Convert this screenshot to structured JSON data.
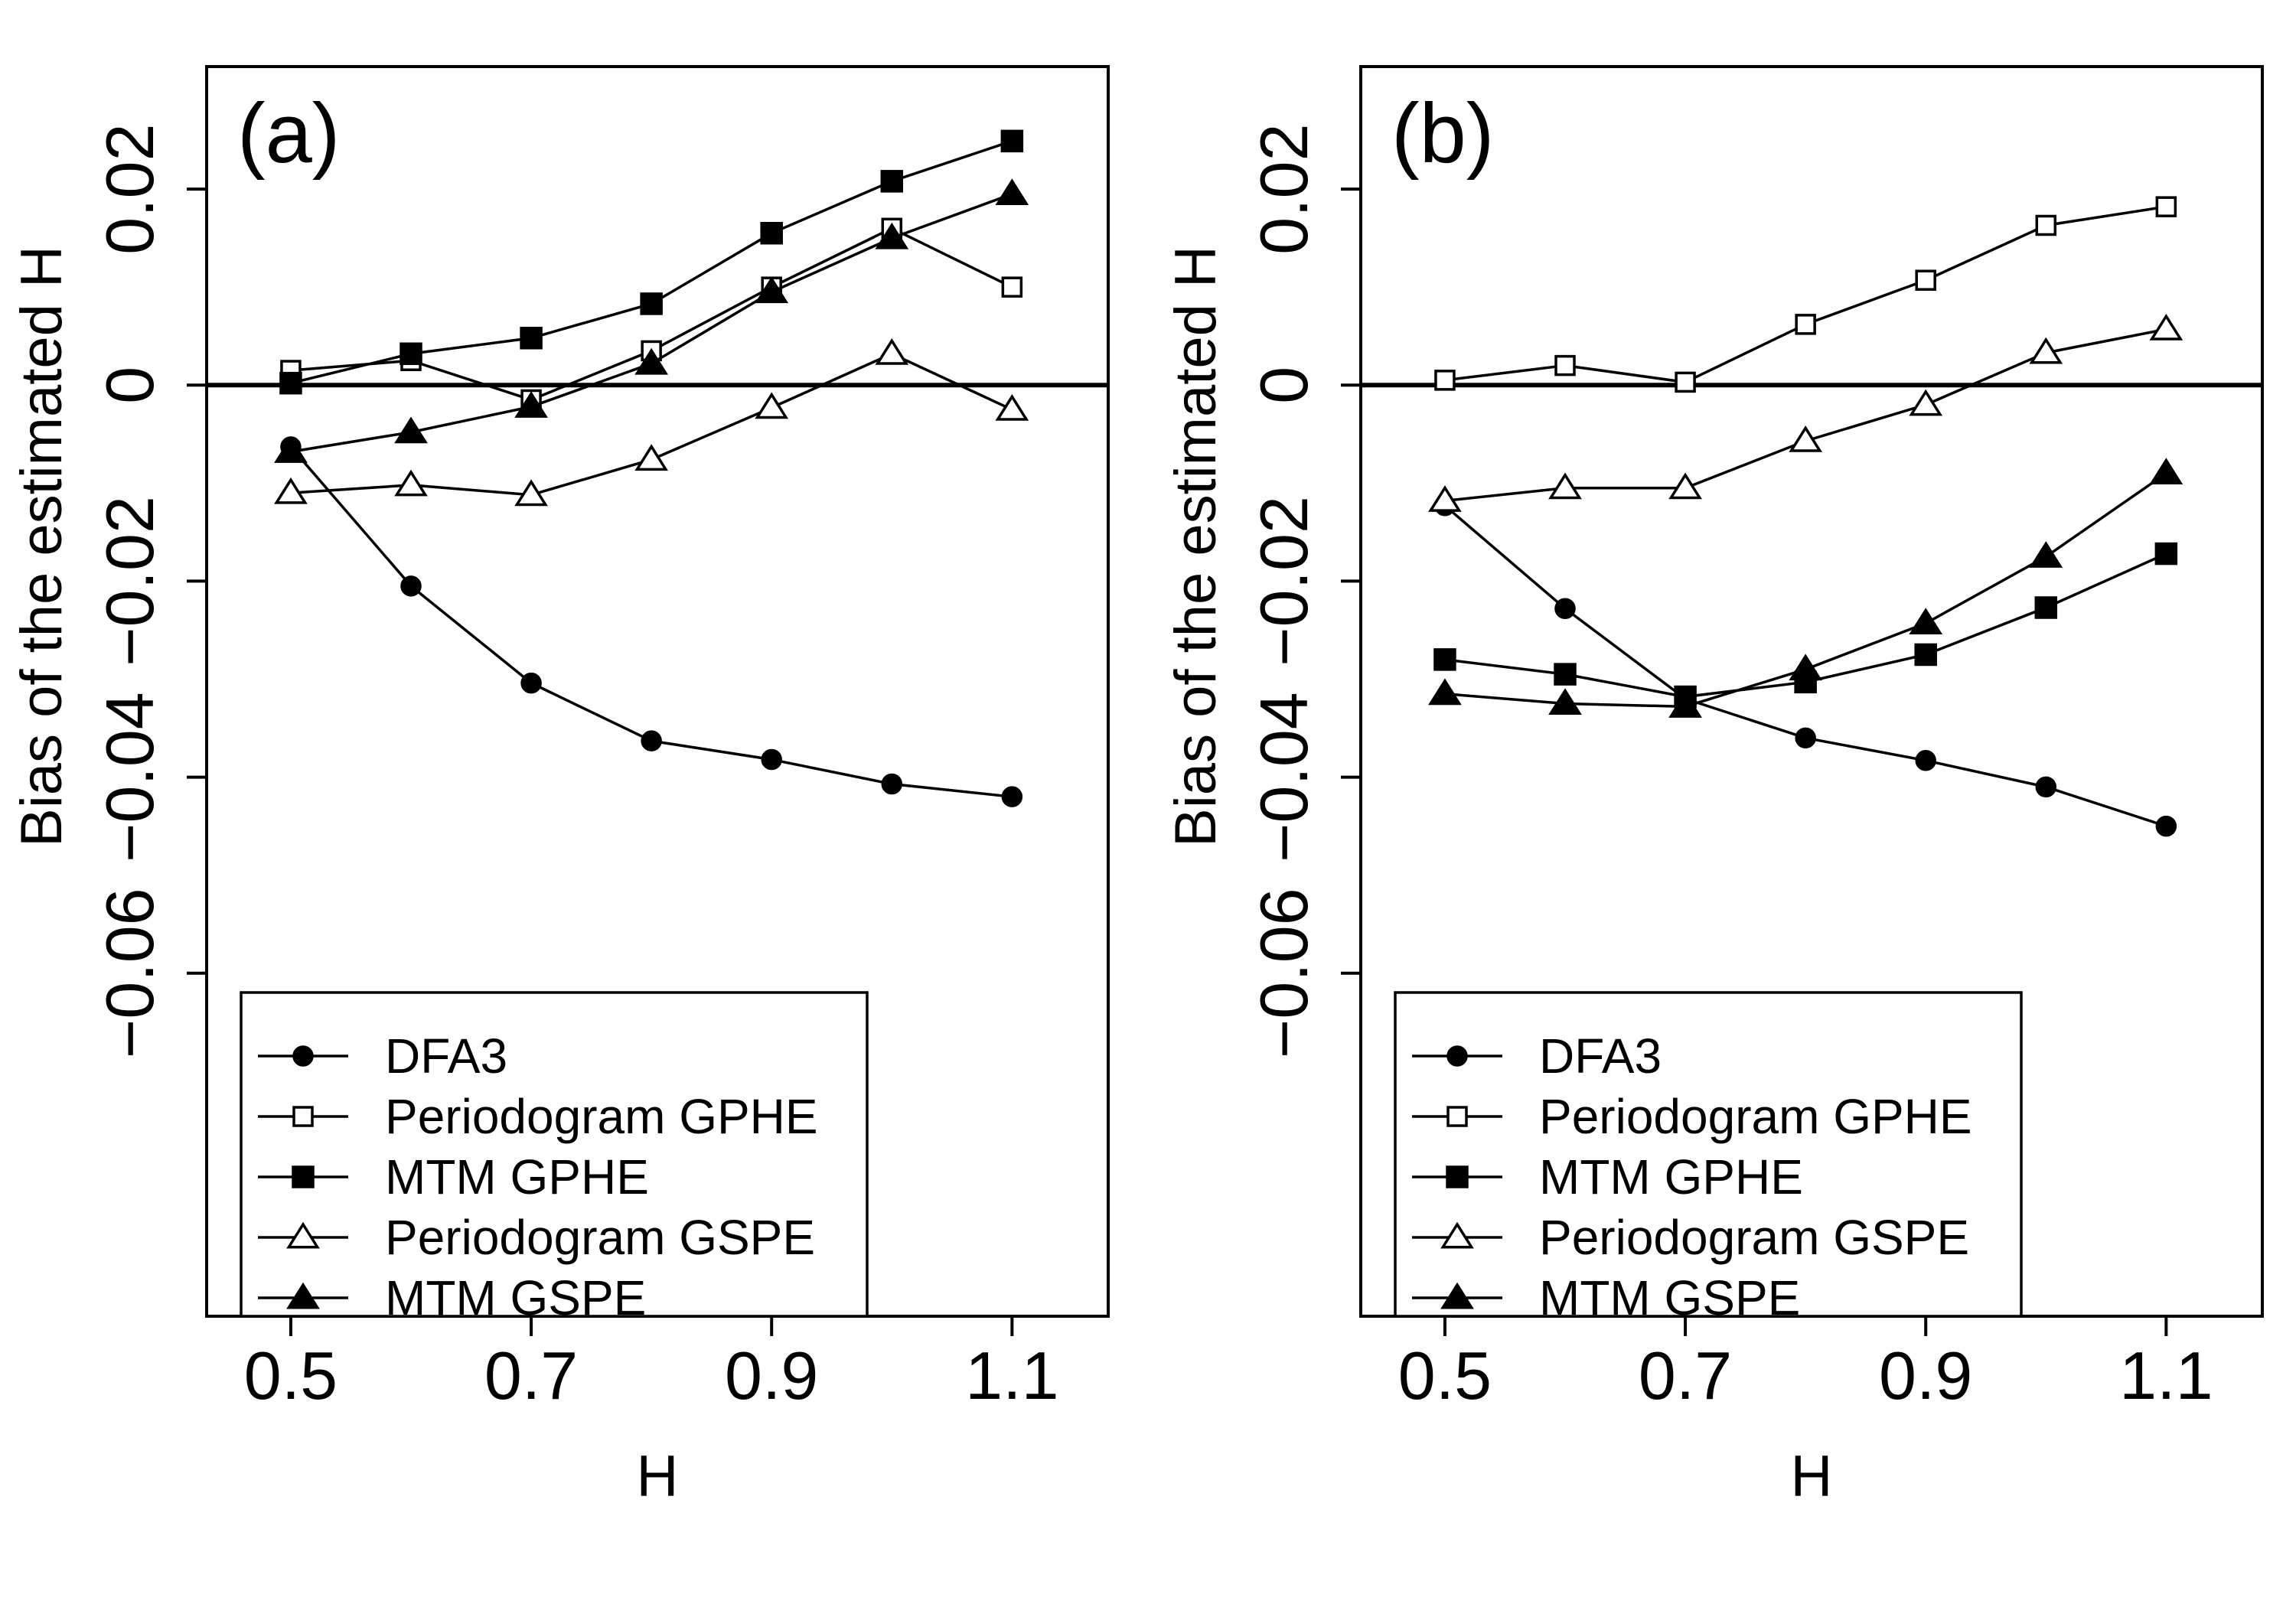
{
  "chart_data": [
    {
      "type": "line",
      "panel_label": "(a)",
      "xlabel": "H",
      "ylabel": "Bias of the estimated H",
      "x": [
        0.5,
        0.6,
        0.7,
        0.8,
        0.9,
        1.0,
        1.1
      ],
      "x_ticks": [
        0.5,
        0.7,
        0.9,
        1.1
      ],
      "x_tick_labels": [
        "0.5",
        "0.7",
        "0.9",
        "1.1"
      ],
      "y_ticks": [
        -0.06,
        -0.04,
        -0.02,
        0,
        0.02
      ],
      "y_tick_labels": [
        "−0.06",
        "−0.04",
        "−0.02",
        "0",
        "0.02"
      ],
      "xlim": [
        0.43,
        1.18
      ],
      "ylim": [
        -0.095,
        0.0325
      ],
      "reference_line_y": 0,
      "legend_position": "bottom-left",
      "series": [
        {
          "name": "DFA3",
          "marker": "circle-filled",
          "values": [
            -0.0063,
            -0.0205,
            -0.0304,
            -0.0363,
            -0.0382,
            -0.0407,
            -0.042
          ]
        },
        {
          "name": "Periodogram GPHE",
          "marker": "square-open",
          "values": [
            0.0015,
            0.0025,
            -0.0015,
            0.0035,
            0.01,
            0.016,
            0.01
          ]
        },
        {
          "name": "MTM GPHE",
          "marker": "square-filled",
          "values": [
            0.0002,
            0.0032,
            0.0048,
            0.0083,
            0.0155,
            0.0208,
            0.0249
          ]
        },
        {
          "name": "Periodogram GSPE",
          "marker": "triangle-open",
          "values": [
            -0.011,
            -0.0102,
            -0.0112,
            -0.0076,
            -0.0023,
            0.0032,
            -0.0025
          ]
        },
        {
          "name": "MTM GSPE",
          "marker": "triangle-filled",
          "values": [
            -0.0068,
            -0.0048,
            -0.0022,
            0.0022,
            0.0095,
            0.015,
            0.0195
          ]
        }
      ]
    },
    {
      "type": "line",
      "panel_label": "(b)",
      "xlabel": "H",
      "ylabel": "Bias of the estimated H",
      "x": [
        0.5,
        0.6,
        0.7,
        0.8,
        0.9,
        1.0,
        1.1
      ],
      "x_ticks": [
        0.5,
        0.7,
        0.9,
        1.1
      ],
      "x_tick_labels": [
        "0.5",
        "0.7",
        "0.9",
        "1.1"
      ],
      "y_ticks": [
        -0.06,
        -0.04,
        -0.02,
        0,
        0.02
      ],
      "y_tick_labels": [
        "−0.06",
        "−0.04",
        "−0.02",
        "0",
        "0.02"
      ],
      "xlim": [
        0.43,
        1.18
      ],
      "ylim": [
        -0.095,
        0.0325
      ],
      "reference_line_y": 0,
      "legend_position": "bottom-left",
      "series": [
        {
          "name": "DFA3",
          "marker": "circle-filled",
          "values": [
            -0.0123,
            -0.0228,
            -0.032,
            -0.036,
            -0.0383,
            -0.041,
            -0.045
          ]
        },
        {
          "name": "Periodogram GPHE",
          "marker": "square-open",
          "values": [
            0.0005,
            0.002,
            0.0003,
            0.0062,
            0.0107,
            0.0163,
            0.0182
          ]
        },
        {
          "name": "MTM GPHE",
          "marker": "square-filled",
          "values": [
            -0.028,
            -0.0295,
            -0.0318,
            -0.0303,
            -0.0275,
            -0.0227,
            -0.0172
          ]
        },
        {
          "name": "Periodogram GSPE",
          "marker": "triangle-open",
          "values": [
            -0.0118,
            -0.0105,
            -0.0105,
            -0.0057,
            -0.002,
            0.0033,
            0.0057
          ]
        },
        {
          "name": "MTM GSPE",
          "marker": "triangle-filled",
          "values": [
            -0.0315,
            -0.0325,
            -0.0328,
            -0.029,
            -0.0243,
            -0.0175,
            -0.009
          ]
        }
      ]
    }
  ]
}
